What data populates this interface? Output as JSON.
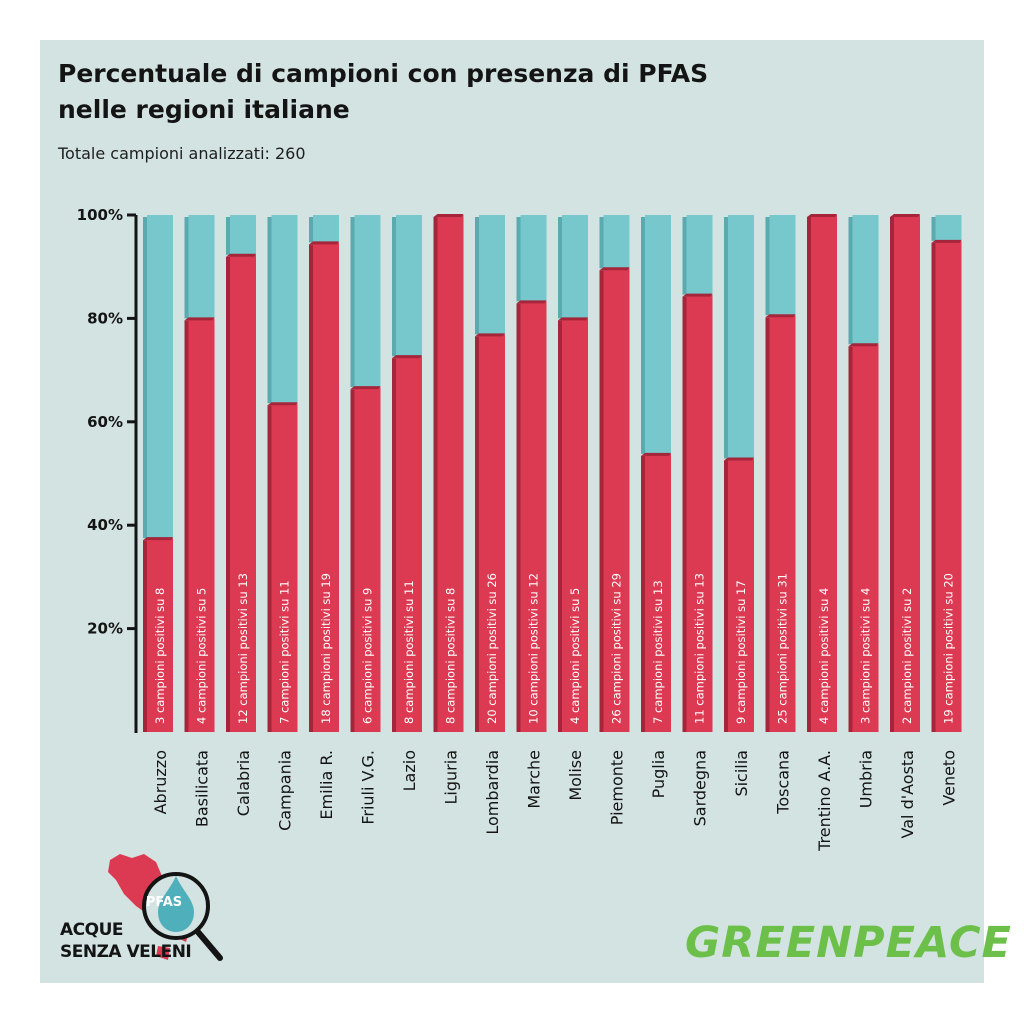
{
  "header": {
    "title_line_1": "Percentuale di campioni con presenza di PFAS",
    "title_line_2": "nelle regioni italiane",
    "subtitle": "Totale campioni analizzati: 260"
  },
  "colors": {
    "background": "#d2e3e1",
    "positive": "#dc3a52",
    "positive_top": "#a5263a",
    "negative": "#76c8cd",
    "negative_edge": "#5aaab0",
    "axis": "#141414",
    "greenpeace": "#6cc04a"
  },
  "chart_data": {
    "type": "bar",
    "stacked": true,
    "yticks": [
      "100%",
      "80%",
      "60%",
      "40%",
      "20%"
    ],
    "ylim": [
      0,
      100
    ],
    "categories": [
      "Abruzzo",
      "Basilicata",
      "Calabria",
      "Campania",
      "Emilia R.",
      "Friuli V.G.",
      "Lazio",
      "Liguria",
      "Lombardia",
      "Marche",
      "Molise",
      "Piemonte",
      "Puglia",
      "Sardegna",
      "Sicilia",
      "Toscana",
      "Trentino A.A.",
      "Umbria",
      "Val d'Aosta",
      "Veneto"
    ],
    "positive": [
      3,
      4,
      12,
      7,
      18,
      6,
      8,
      8,
      20,
      10,
      4,
      26,
      7,
      11,
      9,
      25,
      4,
      3,
      2,
      19
    ],
    "total": [
      8,
      5,
      13,
      11,
      19,
      9,
      11,
      8,
      26,
      12,
      5,
      29,
      13,
      13,
      17,
      31,
      4,
      4,
      2,
      20
    ],
    "percent_positive": [
      37.5,
      80,
      92.3,
      63.6,
      94.7,
      66.7,
      72.7,
      100,
      76.9,
      83.3,
      80,
      89.7,
      53.8,
      84.6,
      52.9,
      80.6,
      100,
      75,
      100,
      95
    ],
    "bar_labels": [
      "3 campioni positivi su 8",
      "4 campioni positivi su 5",
      "12 campioni positivi su 13",
      "7 campioni positivi su 11",
      "18 campioni positivi su 19",
      "6 campioni positivi su 9",
      "8 campioni positivi su 11",
      "8 campioni positivi su 8",
      "20 campioni positivi su 26",
      "10 campioni positivi su 12",
      "4 campioni positivi su 5",
      "26 campioni positivi su 29",
      "7 campioni positivi su 13",
      "11 campioni positivi su 13",
      "9 campioni positivi su 17",
      "25 campioni positivi su 31",
      "4 campioni positivi su 4",
      "3 campioni positivi su 4",
      "2 campioni positivi su 2",
      "19 campioni positivi su 20"
    ]
  },
  "branding": {
    "logo_line_1": "ACQUE",
    "logo_line_2": "SENZA VELENI",
    "drop_label": "PFAS",
    "greenpeace": "GREENPEACE"
  }
}
